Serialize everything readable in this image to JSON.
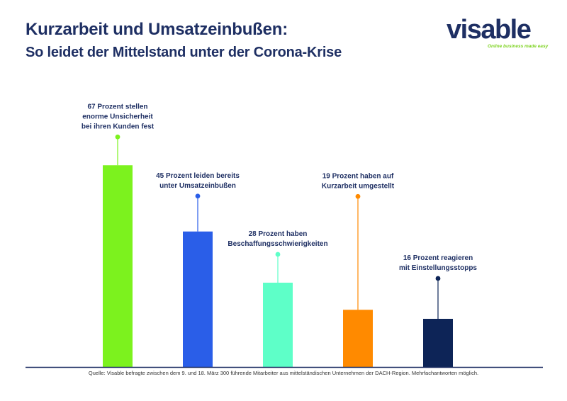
{
  "header": {
    "title": "Kurzarbeit und Umsatzeinbußen:",
    "subtitle": "So leidet der Mittelstand unter der Corona-Krise"
  },
  "logo": {
    "word": "visable",
    "tagline": "Online business made easy",
    "word_color": "#1e2f63",
    "accent_color": "#7ed321"
  },
  "chart_data": {
    "type": "bar",
    "categories": [
      "67 Prozent stellen enorme Unsicherheit bei ihren Kunden fest",
      "45 Prozent leiden bereits unter Umsatzeinbußen",
      "28 Prozent haben Beschaffungsschwierigkeiten",
      "19 Prozent haben auf Kurzarbeit umgestellt",
      "16 Prozent reagieren mit Einstellungsstopps"
    ],
    "values": [
      67,
      45,
      28,
      19,
      16
    ],
    "label_lines": [
      [
        "67 Prozent stellen",
        "enorme Unsicherheit",
        "bei ihren Kunden fest"
      ],
      [
        "45 Prozent leiden bereits",
        "unter Umsatzeinbußen"
      ],
      [
        "28 Prozent haben",
        "Beschaffungsschwierigkeiten"
      ],
      [
        "19 Prozent haben auf",
        "Kurzarbeit umgestellt"
      ],
      [
        "16 Prozent reagieren",
        "mit Einstellungsstopps"
      ]
    ],
    "colors": [
      "#7cf21e",
      "#2a5ee8",
      "#5effc8",
      "#ff8a00",
      "#0d2457"
    ],
    "ylim": [
      0,
      100
    ],
    "grid": false,
    "axis_color": "#1e2f63",
    "label_color": "#1e2f63"
  },
  "footer": {
    "source": "Quelle: Visable befragte zwischen dem 9. und 18. März 300 führende Mitarbeiter aus mittelständischen Unternehmen der DACH-Region. Mehrfachantworten möglich."
  }
}
